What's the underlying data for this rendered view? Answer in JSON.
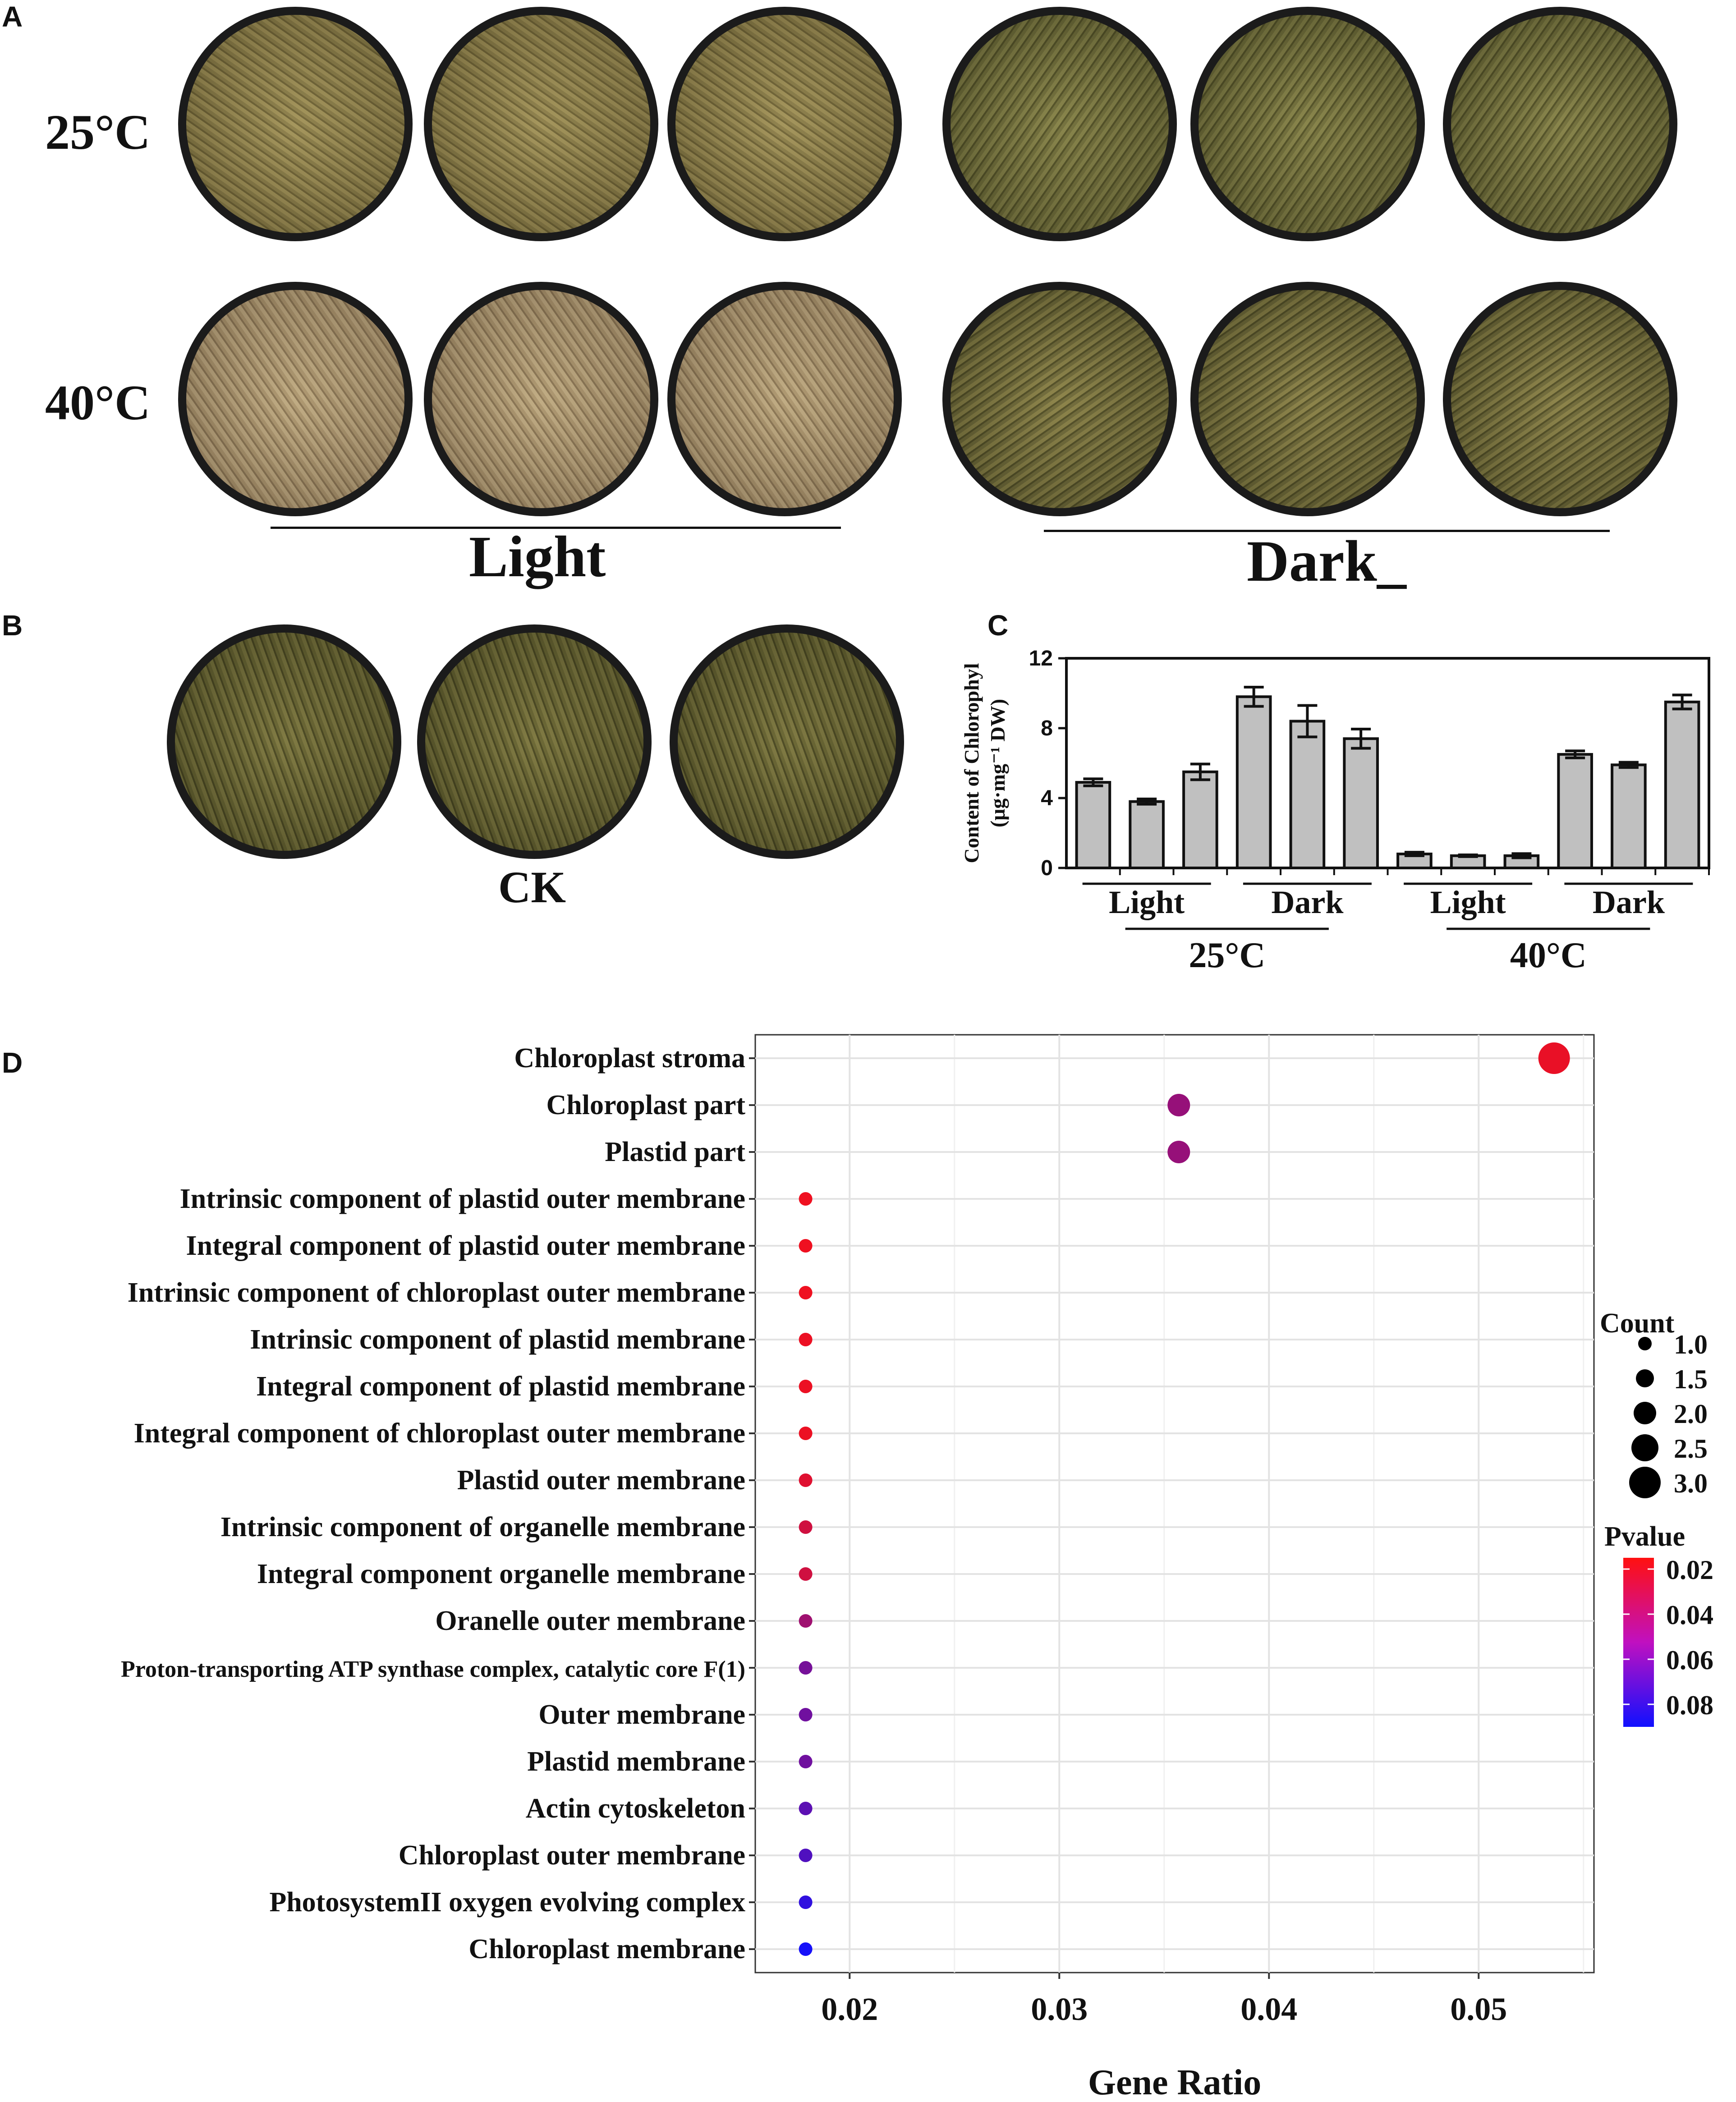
{
  "panel_labels": {
    "a": "A",
    "b": "B",
    "c": "C",
    "d": "D"
  },
  "panel_a": {
    "row_labels": [
      "25°C",
      "40°C"
    ],
    "group_labels": {
      "light": "Light",
      "dark": "Dark_"
    },
    "plates": [
      {
        "name": "plate-25c-light-1",
        "row": 0,
        "group": "light"
      },
      {
        "name": "plate-25c-light-2",
        "row": 0,
        "group": "light"
      },
      {
        "name": "plate-25c-light-3",
        "row": 0,
        "group": "light"
      },
      {
        "name": "plate-25c-dark-1",
        "row": 0,
        "group": "dark"
      },
      {
        "name": "plate-25c-dark-2",
        "row": 0,
        "group": "dark"
      },
      {
        "name": "plate-25c-dark-3",
        "row": 0,
        "group": "dark"
      },
      {
        "name": "plate-40c-light-1",
        "row": 1,
        "group": "light"
      },
      {
        "name": "plate-40c-light-2",
        "row": 1,
        "group": "light"
      },
      {
        "name": "plate-40c-light-3",
        "row": 1,
        "group": "light"
      },
      {
        "name": "plate-40c-dark-1",
        "row": 1,
        "group": "dark"
      },
      {
        "name": "plate-40c-dark-2",
        "row": 1,
        "group": "dark"
      },
      {
        "name": "plate-40c-dark-3",
        "row": 1,
        "group": "dark"
      }
    ]
  },
  "panel_b": {
    "label": "CK"
  },
  "chart_data": [
    {
      "type": "bar",
      "panel": "C",
      "ylabel": "Content of Chlorophyl",
      "ylabel_unit": "(μg·mg⁻¹ DW)",
      "ylim": [
        0,
        12
      ],
      "yticks": [
        0,
        4,
        8,
        12
      ],
      "values": [
        4.9,
        3.8,
        5.5,
        9.8,
        8.4,
        7.4,
        0.8,
        0.7,
        0.7,
        6.5,
        5.9,
        9.5
      ],
      "errors": [
        0.2,
        0.15,
        0.45,
        0.55,
        0.9,
        0.55,
        0.1,
        0.05,
        0.12,
        0.2,
        0.15,
        0.4
      ],
      "sub_groups": [
        {
          "label": "Light",
          "bars": [
            0,
            1,
            2
          ]
        },
        {
          "label": "Dark",
          "bars": [
            3,
            4,
            5
          ]
        },
        {
          "label": "Light",
          "bars": [
            6,
            7,
            8
          ]
        },
        {
          "label": "Dark",
          "bars": [
            9,
            10,
            11
          ]
        }
      ],
      "temperature_groups": [
        {
          "label": "25°C",
          "bars": [
            0,
            5
          ]
        },
        {
          "label": "40°C",
          "bars": [
            6,
            11
          ]
        }
      ],
      "bar_color": "#c0c0c0"
    },
    {
      "type": "scatter",
      "panel": "D",
      "title": "",
      "xlabel": "Gene Ratio",
      "ylabel": "",
      "xlim": [
        0.0155,
        0.0555
      ],
      "xticks": [
        0.02,
        0.03,
        0.04,
        0.05
      ],
      "xtick_labels": [
        "0.02",
        "0.03",
        "0.04",
        "0.05"
      ],
      "terms": [
        {
          "term": "Chloroplast stroma",
          "ratio": 0.0536,
          "count": 3,
          "pvalue": 0.022
        },
        {
          "term": "Chloroplast part",
          "ratio": 0.0357,
          "count": 2,
          "pvalue": 0.048
        },
        {
          "term": "Plastid part",
          "ratio": 0.0357,
          "count": 2,
          "pvalue": 0.048
        },
        {
          "term": "Intrinsic component of plastid outer membrane",
          "ratio": 0.0179,
          "count": 1,
          "pvalue": 0.02
        },
        {
          "term": "Integral component of plastid outer membrane",
          "ratio": 0.0179,
          "count": 1,
          "pvalue": 0.02
        },
        {
          "term": "Intrinsic component of chloroplast outer membrane",
          "ratio": 0.0179,
          "count": 1,
          "pvalue": 0.02
        },
        {
          "term": "Intrinsic component of plastid membrane",
          "ratio": 0.0179,
          "count": 1,
          "pvalue": 0.021
        },
        {
          "term": "Integral component of plastid membrane",
          "ratio": 0.0179,
          "count": 1,
          "pvalue": 0.021
        },
        {
          "term": "Integral component of chloroplast outer membrane",
          "ratio": 0.0179,
          "count": 1,
          "pvalue": 0.021
        },
        {
          "term": "Plastid outer membrane",
          "ratio": 0.0179,
          "count": 1,
          "pvalue": 0.025
        },
        {
          "term": "Intrinsic component of organelle membrane",
          "ratio": 0.0179,
          "count": 1,
          "pvalue": 0.03
        },
        {
          "term": "Integral component organelle membrane",
          "ratio": 0.0179,
          "count": 1,
          "pvalue": 0.03
        },
        {
          "term": "Oranelle outer membrane",
          "ratio": 0.0179,
          "count": 1,
          "pvalue": 0.045
        },
        {
          "term": "Proton-transporting ATP synthase complex, catalytic core F(1)",
          "ratio": 0.0179,
          "count": 1,
          "pvalue": 0.058
        },
        {
          "term": "Outer membrane",
          "ratio": 0.0179,
          "count": 1,
          "pvalue": 0.06
        },
        {
          "term": "Plastid membrane",
          "ratio": 0.0179,
          "count": 1,
          "pvalue": 0.06
        },
        {
          "term": "Actin cytoskeleton",
          "ratio": 0.0179,
          "count": 1,
          "pvalue": 0.066
        },
        {
          "term": "Chloroplast outer membrane",
          "ratio": 0.0179,
          "count": 1,
          "pvalue": 0.07
        },
        {
          "term": "PhotosystemII oxygen evolving complex",
          "ratio": 0.0179,
          "count": 1,
          "pvalue": 0.08
        },
        {
          "term": "Chloroplast membrane",
          "ratio": 0.0179,
          "count": 1,
          "pvalue": 0.088
        }
      ],
      "legend_count": {
        "title": "Count",
        "values": [
          1.0,
          1.5,
          2.0,
          2.5,
          3.0
        ],
        "labels": [
          "1.0",
          "1.5",
          "2.0",
          "2.5",
          "3.0"
        ]
      },
      "legend_pvalue": {
        "title": "Pvalue",
        "range": [
          0.015,
          0.09
        ],
        "ticks": [
          0.02,
          0.04,
          0.06,
          0.08
        ],
        "labels": [
          "0.02",
          "0.04",
          "0.06",
          "0.08"
        ],
        "low_color": "#ff1010",
        "high_color": "#1010ff"
      },
      "grid": true,
      "legend_position": "right"
    }
  ]
}
